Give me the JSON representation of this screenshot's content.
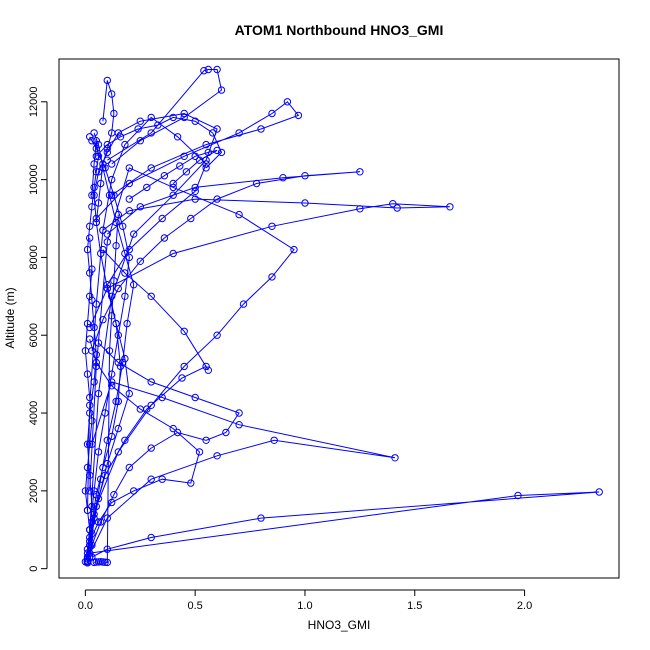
{
  "chart_data": {
    "type": "scatter",
    "title": "ATOM1 Northbound HNO3_GMI",
    "xlabel": "HNO3_GMI",
    "ylabel": "Altitude (m)",
    "xlim": [
      -0.12,
      2.43
    ],
    "ylim": [
      -240,
      13100
    ],
    "xticks": [
      0.0,
      0.5,
      1.0,
      1.5,
      2.0
    ],
    "xtick_labels": [
      "0.0",
      "0.5",
      "1.0",
      "1.5",
      "2.0"
    ],
    "yticks": [
      0,
      2000,
      4000,
      6000,
      8000,
      10000,
      12000
    ],
    "ytick_labels": [
      "0",
      "2000",
      "4000",
      "6000",
      "8000",
      "10000",
      "12000"
    ],
    "grid": false,
    "legend": "none",
    "color": "#0000ff",
    "marker": "open-circle",
    "connected": true,
    "series": [
      {
        "x": [
          0.01,
          0.02,
          0.03,
          0.05,
          0.08,
          0.12,
          0.15,
          0.16,
          0.14,
          0.1,
          0.2,
          0.35,
          0.5,
          0.55,
          0.42,
          0.3,
          0.18,
          0.12,
          0.08,
          0.05,
          0.02,
          0.01
        ],
        "y": [
          180,
          600,
          1200,
          1900,
          2600,
          3400,
          4300,
          5200,
          6300,
          7300,
          8200,
          9000,
          9700,
          10400,
          11100,
          11600,
          10900,
          10000,
          8700,
          6800,
          4200,
          1500
        ]
      },
      {
        "x": [
          0.01,
          0.03,
          0.06,
          0.1,
          0.15,
          0.2,
          0.18,
          0.14,
          0.1,
          0.07,
          0.05,
          0.04,
          0.06,
          0.1,
          0.15,
          0.25,
          0.45,
          0.6,
          0.55,
          0.4,
          0.22,
          0.12,
          0.06,
          0.02
        ],
        "y": [
          200,
          900,
          1800,
          2700,
          3600,
          4500,
          5400,
          6300,
          7200,
          8100,
          8900,
          9600,
          10200,
          10700,
          11200,
          11500,
          11700,
          11300,
          10500,
          9600,
          8600,
          7000,
          4500,
          1000
        ]
      },
      {
        "x": [
          0.01,
          0.05,
          0.15,
          0.3,
          0.45,
          0.6,
          0.72,
          0.85,
          0.95,
          0.7,
          0.4,
          0.2,
          0.1,
          0.05,
          0.02
        ],
        "y": [
          300,
          1600,
          3000,
          4200,
          5200,
          6000,
          6800,
          7500,
          8200,
          9100,
          9800,
          10300,
          8400,
          5200,
          2000
        ]
      },
      {
        "x": [
          0.01,
          0.1,
          0.3,
          0.6,
          0.86,
          1.41,
          0.7,
          0.35,
          0.12,
          0.03
        ],
        "y": [
          250,
          1300,
          2300,
          2900,
          3300,
          2850,
          3700,
          4400,
          4800,
          3200
        ]
      },
      {
        "x": [
          0.01,
          0.02,
          1.97,
          2.34,
          0.8,
          0.3,
          0.1,
          0.03
        ],
        "y": [
          190,
          400,
          1880,
          1970,
          1300,
          800,
          500,
          300
        ]
      },
      {
        "x": [
          0.02,
          0.1,
          0.4,
          0.85,
          1.25,
          1.4,
          1.66,
          1.42,
          1.0,
          0.5,
          0.2,
          0.08
        ],
        "y": [
          6200,
          7200,
          8100,
          8800,
          9250,
          9380,
          9300,
          9270,
          9400,
          9500,
          9200,
          8700
        ]
      },
      {
        "x": [
          0.05,
          0.2,
          0.45,
          0.7,
          0.85,
          0.92,
          0.97,
          0.8,
          0.55,
          0.3,
          0.12
        ],
        "y": [
          9000,
          9900,
          10600,
          11200,
          11700,
          12000,
          11650,
          11300,
          10900,
          10300,
          9600
        ]
      },
      {
        "x": [
          0.1,
          0.3,
          0.54,
          0.56,
          0.6,
          0.62,
          0.45,
          0.25,
          0.12
        ],
        "y": [
          10500,
          11200,
          12800,
          12830,
          12830,
          12300,
          11600,
          11000,
          10400
        ]
      },
      {
        "x": [
          0.08,
          0.1,
          0.12,
          0.13,
          0.12,
          0.1,
          0.08,
          0.07,
          0.06,
          0.05
        ],
        "y": [
          11500,
          12550,
          12200,
          11700,
          11200,
          10800,
          10400,
          9900,
          9400,
          8900
        ]
      },
      {
        "x": [
          0.02,
          0.06,
          0.12,
          0.22,
          0.35,
          0.48,
          0.52,
          0.4,
          0.25,
          0.12,
          0.05,
          0.02
        ],
        "y": [
          700,
          1200,
          1700,
          2000,
          2300,
          2200,
          3000,
          3600,
          4100,
          4700,
          5300,
          5900
        ]
      },
      {
        "x": [
          0.01,
          0.04,
          0.09,
          0.18,
          0.28,
          0.44,
          0.55,
          0.56,
          0.45,
          0.3,
          0.18,
          0.08
        ],
        "y": [
          400,
          1400,
          2400,
          3300,
          4100,
          4900,
          5200,
          5100,
          6100,
          7000,
          7600,
          8200
        ]
      },
      {
        "x": [
          0.01,
          0.02,
          0.04,
          0.06,
          0.09,
          0.12,
          0.15,
          0.18,
          0.2,
          0.17,
          0.13,
          0.09,
          0.05,
          0.03,
          0.02
        ],
        "y": [
          200,
          1000,
          2000,
          3000,
          4000,
          5000,
          6000,
          7000,
          8000,
          8800,
          9600,
          10300,
          10800,
          11000,
          11100
        ]
      },
      {
        "x": [
          0.01,
          0.03,
          0.07,
          0.13,
          0.2,
          0.3,
          0.42,
          0.55,
          0.64,
          0.7,
          0.5,
          0.3,
          0.15,
          0.06
        ],
        "y": [
          150,
          600,
          1200,
          1900,
          2600,
          3100,
          3500,
          3300,
          3500,
          4000,
          4400,
          4800,
          5300,
          5800
        ]
      },
      {
        "x": [
          0.03,
          0.08,
          0.15,
          0.25,
          0.36,
          0.48,
          0.6,
          0.78,
          1.0,
          1.25,
          0.9,
          0.5,
          0.25,
          0.1
        ],
        "y": [
          5600,
          6400,
          7200,
          7900,
          8500,
          9000,
          9500,
          9900,
          10100,
          10200,
          10050,
          9800,
          9300,
          8600
        ]
      },
      {
        "x": [
          0.01,
          0.02,
          0.03,
          0.02,
          0.01,
          0.02,
          0.04,
          0.05,
          0.04,
          0.03,
          0.02,
          0.01,
          0.02,
          0.03,
          0.04,
          0.05,
          0.06,
          0.05,
          0.04,
          0.03
        ],
        "y": [
          150,
          800,
          1600,
          2400,
          3200,
          4000,
          4800,
          5500,
          6200,
          6900,
          7600,
          8200,
          8800,
          9300,
          9800,
          10200,
          10600,
          11000,
          10400,
          9600
        ]
      },
      {
        "x": [
          0.02,
          0.04,
          0.07,
          0.1,
          0.14,
          0.17,
          0.19,
          0.22,
          0.18,
          0.14,
          0.11,
          0.08,
          0.06,
          0.04
        ],
        "y": [
          300,
          1300,
          2300,
          3300,
          4300,
          5300,
          6300,
          7300,
          8100,
          8900,
          9600,
          10300,
          10900,
          11200
        ]
      },
      {
        "x": [
          0.05,
          0.1,
          0.16,
          0.24,
          0.33,
          0.4,
          0.5,
          0.58,
          0.62,
          0.55
        ],
        "y": [
          10600,
          10900,
          11100,
          11300,
          11400,
          11600,
          11500,
          11200,
          10700,
          10300
        ]
      },
      {
        "x": [
          0.2,
          0.28,
          0.36,
          0.43,
          0.5,
          0.56,
          0.6,
          0.52,
          0.46,
          0.4
        ],
        "y": [
          9500,
          9800,
          10100,
          10350,
          10600,
          10700,
          10750,
          10500,
          10200,
          9900
        ]
      },
      {
        "x": [
          0.0,
          0.01,
          0.02,
          0.01,
          0.0,
          0.01,
          0.02,
          0.03,
          0.02,
          0.01,
          0.0,
          0.01,
          0.02,
          0.03,
          0.02
        ],
        "y": [
          180,
          500,
          1000,
          1500,
          2000,
          2600,
          3200,
          3800,
          4400,
          5000,
          5600,
          6300,
          7000,
          7700,
          8500
        ]
      },
      {
        "x": [
          0.04,
          0.05,
          0.06,
          0.07,
          0.08,
          0.09,
          0.1,
          0.11,
          0.12,
          0.13,
          0.14,
          0.15
        ],
        "y": [
          160,
          170,
          175,
          180,
          170,
          165,
          160,
          5600,
          6500,
          7400,
          8300,
          9100
        ]
      }
    ]
  }
}
